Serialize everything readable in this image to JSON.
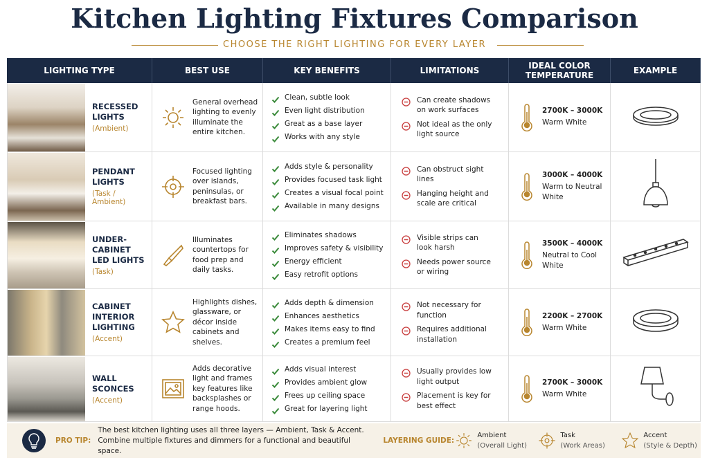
{
  "title": "Kitchen Lighting Fixtures Comparison",
  "subtitle": "CHOOSE THE RIGHT LIGHTING FOR EVERY LAYER",
  "table": {
    "headers": [
      "LIGHTING TYPE",
      "BEST USE",
      "KEY BENEFITS",
      "LIMITATIONS",
      "IDEAL COLOR TEMPERATURE",
      "EXAMPLE"
    ],
    "rows": [
      {
        "name": "RECESSED LIGHTS",
        "category": "(Ambient)",
        "best_use": "General overhead lighting to evenly illuminate the entire kitchen.",
        "benefits": [
          "Clean, subtle look",
          "Even light distribution",
          "Great as a base layer",
          "Works with any style"
        ],
        "limitations": [
          "Can create shadows on work surfaces",
          "Not ideal as the only light source"
        ],
        "temperature": "2700K – 3000K",
        "temperature_desc": "Warm White"
      },
      {
        "name": "PENDANT LIGHTS",
        "category": "(Task / Ambient)",
        "best_use": "Focused lighting over islands, peninsulas, or breakfast bars.",
        "benefits": [
          "Adds style & personality",
          "Provides focused task light",
          "Creates a visual focal point",
          "Available in many designs"
        ],
        "limitations": [
          "Can obstruct sight lines",
          "Hanging height and scale are critical"
        ],
        "temperature": "3000K – 4000K",
        "temperature_desc": "Warm to Neutral White"
      },
      {
        "name": "UNDER-CABINET LED LIGHTS",
        "category": "(Task)",
        "best_use": "Illuminates countertops for food prep and daily tasks.",
        "benefits": [
          "Eliminates shadows",
          "Improves safety & visibility",
          "Energy efficient",
          "Easy retrofit options"
        ],
        "limitations": [
          "Visible strips can look harsh",
          "Needs power source or wiring"
        ],
        "temperature": "3500K – 4000K",
        "temperature_desc": "Neutral to Cool White"
      },
      {
        "name": "CABINET INTERIOR LIGHTING",
        "category": "(Accent)",
        "best_use": "Highlights dishes, glassware, or décor inside cabinets and shelves.",
        "benefits": [
          "Adds depth & dimension",
          "Enhances aesthetics",
          "Makes items easy to find",
          "Creates a premium feel"
        ],
        "limitations": [
          "Not necessary for function",
          "Requires additional installation"
        ],
        "temperature": "2200K – 2700K",
        "temperature_desc": "Warm White"
      },
      {
        "name": "WALL SCONCES",
        "category": "(Accent)",
        "best_use": "Adds decorative light and frames key features like backsplashes or range hoods.",
        "benefits": [
          "Adds visual interest",
          "Provides ambient glow",
          "Frees up ceiling space",
          "Great for layering light"
        ],
        "limitations": [
          "Usually provides low light output",
          "Placement is key for best effect"
        ],
        "temperature": "2700K – 3000K",
        "temperature_desc": "Warm White"
      }
    ]
  },
  "footer": {
    "pro_tip_label": "PRO TIP:",
    "pro_tip": "The best kitchen lighting uses all three layers — Ambient, Task & Accent. Combine multiple fixtures and dimmers for a functional and beautiful space.",
    "guide_label": "LAYERING GUIDE:",
    "guide": [
      {
        "name": "Ambient",
        "desc": "(Overall Light)"
      },
      {
        "name": "Task",
        "desc": "(Work Areas)"
      },
      {
        "name": "Accent",
        "desc": "(Style & Depth)"
      }
    ]
  }
}
